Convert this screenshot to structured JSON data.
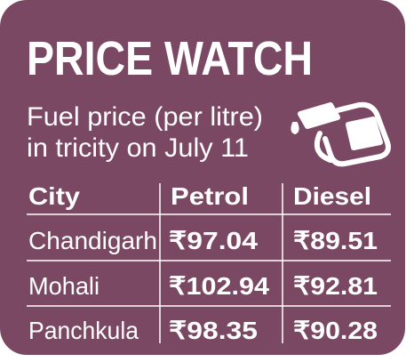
{
  "header": {
    "title": "PRICE WATCH",
    "subtitle": [
      "Fuel price (per litre)",
      "in tricity on July 11"
    ]
  },
  "table": {
    "columns": [
      "City",
      "Petrol",
      "Diesel"
    ],
    "rows": [
      [
        "Chandigarh",
        "₹97.04",
        "₹89.51"
      ],
      [
        "Mohali",
        "₹102.94",
        "₹92.81"
      ],
      [
        "Panchkula",
        "₹98.35",
        "₹90.28"
      ]
    ]
  }
}
